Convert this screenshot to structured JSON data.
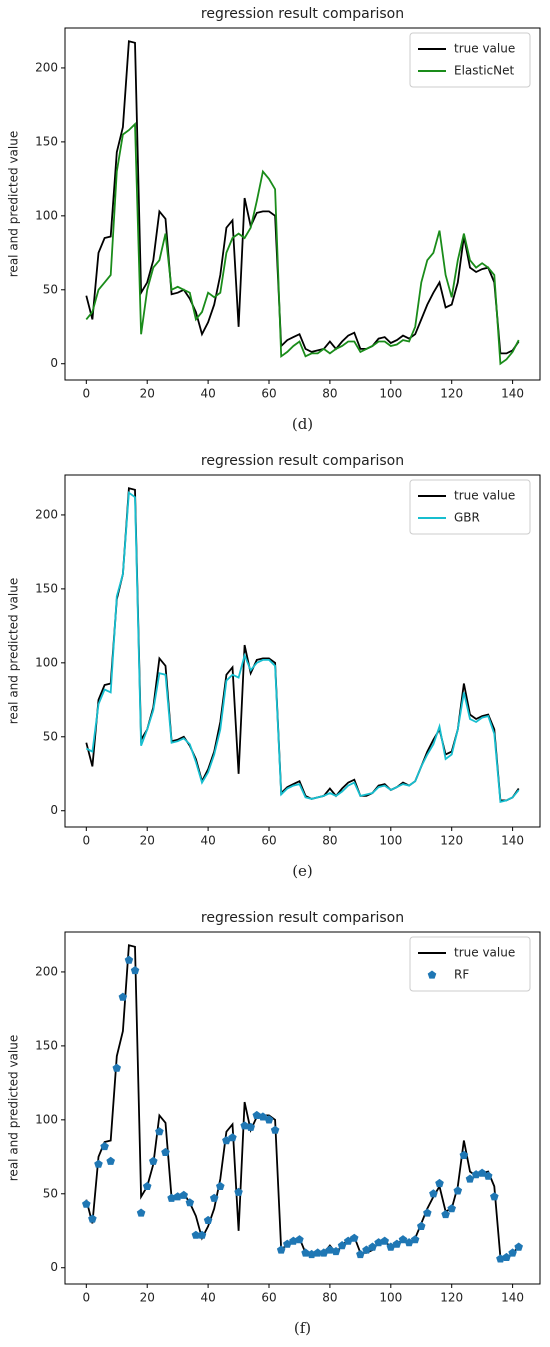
{
  "chart_data": [
    {
      "type": "line",
      "title": "regression result comparison",
      "ylabel": "real and predicted value",
      "caption": "(d)",
      "legend": "upper right",
      "x": [
        0,
        2,
        4,
        6,
        8,
        10,
        12,
        14,
        16,
        18,
        20,
        22,
        24,
        26,
        28,
        30,
        32,
        34,
        36,
        38,
        40,
        42,
        44,
        46,
        48,
        50,
        52,
        54,
        56,
        58,
        60,
        62,
        64,
        66,
        68,
        70,
        72,
        74,
        76,
        78,
        80,
        82,
        84,
        86,
        88,
        90,
        92,
        94,
        96,
        98,
        100,
        102,
        104,
        106,
        108,
        110,
        112,
        114,
        116,
        118,
        120,
        122,
        124,
        126,
        128,
        130,
        132,
        134,
        136,
        138,
        140,
        142
      ],
      "series": [
        {
          "name": "true value",
          "color": "#000000",
          "style": "line",
          "values": [
            46,
            30,
            75,
            85,
            86,
            143,
            160,
            218,
            217,
            48,
            55,
            70,
            103,
            98,
            47,
            48,
            50,
            44,
            35,
            20,
            28,
            40,
            60,
            92,
            97,
            25,
            112,
            93,
            102,
            103,
            103,
            100,
            12,
            16,
            18,
            20,
            10,
            8,
            9,
            10,
            15,
            10,
            15,
            19,
            21,
            10,
            10,
            12,
            17,
            18,
            14,
            16,
            19,
            17,
            20,
            30,
            40,
            48,
            55,
            38,
            40,
            55,
            86,
            65,
            62,
            64,
            65,
            55,
            7,
            7,
            9,
            15
          ]
        },
        {
          "name": "ElasticNet",
          "color": "#1a8c1a",
          "style": "line",
          "values": [
            30,
            35,
            50,
            55,
            60,
            130,
            155,
            158,
            162,
            20,
            50,
            65,
            70,
            88,
            50,
            52,
            50,
            48,
            30,
            35,
            48,
            45,
            48,
            75,
            85,
            88,
            85,
            92,
            110,
            130,
            125,
            118,
            5,
            8,
            12,
            15,
            5,
            7,
            7,
            10,
            7,
            10,
            12,
            15,
            15,
            8,
            10,
            12,
            15,
            15,
            12,
            13,
            16,
            15,
            25,
            55,
            70,
            75,
            90,
            60,
            45,
            70,
            88,
            70,
            65,
            68,
            65,
            60,
            0,
            3,
            8,
            16
          ]
        }
      ],
      "xlim": [
        -7,
        149
      ],
      "ylim": [
        -11,
        227
      ],
      "xticks": [
        0,
        20,
        40,
        60,
        80,
        100,
        120,
        140
      ],
      "yticks": [
        0,
        50,
        100,
        150,
        200
      ]
    },
    {
      "type": "line",
      "title": "regression result comparison",
      "ylabel": "real and predicted value",
      "caption": "(e)",
      "legend": "upper right",
      "x": [
        0,
        2,
        4,
        6,
        8,
        10,
        12,
        14,
        16,
        18,
        20,
        22,
        24,
        26,
        28,
        30,
        32,
        34,
        36,
        38,
        40,
        42,
        44,
        46,
        48,
        50,
        52,
        54,
        56,
        58,
        60,
        62,
        64,
        66,
        68,
        70,
        72,
        74,
        76,
        78,
        80,
        82,
        84,
        86,
        88,
        90,
        92,
        94,
        96,
        98,
        100,
        102,
        104,
        106,
        108,
        110,
        112,
        114,
        116,
        118,
        120,
        122,
        124,
        126,
        128,
        130,
        132,
        134,
        136,
        138,
        140,
        142
      ],
      "series": [
        {
          "name": "true value",
          "color": "#000000",
          "style": "line",
          "values": [
            46,
            30,
            75,
            85,
            86,
            143,
            160,
            218,
            217,
            48,
            55,
            70,
            103,
            98,
            47,
            48,
            50,
            44,
            35,
            20,
            28,
            40,
            60,
            92,
            97,
            25,
            112,
            93,
            102,
            103,
            103,
            100,
            12,
            16,
            18,
            20,
            10,
            8,
            9,
            10,
            15,
            10,
            15,
            19,
            21,
            10,
            10,
            12,
            17,
            18,
            14,
            16,
            19,
            17,
            20,
            30,
            40,
            48,
            55,
            38,
            40,
            55,
            86,
            65,
            62,
            64,
            65,
            55,
            7,
            7,
            9,
            15
          ]
        },
        {
          "name": "GBR",
          "color": "#17becf",
          "style": "line",
          "values": [
            42,
            40,
            72,
            82,
            80,
            145,
            160,
            215,
            212,
            44,
            55,
            68,
            93,
            92,
            46,
            47,
            49,
            45,
            33,
            19,
            26,
            38,
            55,
            88,
            92,
            90,
            105,
            95,
            100,
            102,
            102,
            98,
            11,
            15,
            17,
            18,
            9,
            8,
            9,
            10,
            12,
            10,
            13,
            17,
            19,
            10,
            11,
            12,
            16,
            17,
            14,
            16,
            18,
            17,
            20,
            30,
            38,
            45,
            57,
            35,
            38,
            55,
            80,
            62,
            60,
            63,
            64,
            52,
            6,
            7,
            9,
            14
          ]
        }
      ],
      "xlim": [
        -7,
        149
      ],
      "ylim": [
        -11,
        227
      ],
      "xticks": [
        0,
        20,
        40,
        60,
        80,
        100,
        120,
        140
      ],
      "yticks": [
        0,
        50,
        100,
        150,
        200
      ]
    },
    {
      "type": "line",
      "title": "regression result comparison",
      "ylabel": "real and predicted value",
      "caption": "(f)",
      "legend": "upper right",
      "x": [
        0,
        2,
        4,
        6,
        8,
        10,
        12,
        14,
        16,
        18,
        20,
        22,
        24,
        26,
        28,
        30,
        32,
        34,
        36,
        38,
        40,
        42,
        44,
        46,
        48,
        50,
        52,
        54,
        56,
        58,
        60,
        62,
        64,
        66,
        68,
        70,
        72,
        74,
        76,
        78,
        80,
        82,
        84,
        86,
        88,
        90,
        92,
        94,
        96,
        98,
        100,
        102,
        104,
        106,
        108,
        110,
        112,
        114,
        116,
        118,
        120,
        122,
        124,
        126,
        128,
        130,
        132,
        134,
        136,
        138,
        140,
        142
      ],
      "series": [
        {
          "name": "true value",
          "color": "#000000",
          "style": "line",
          "values": [
            46,
            30,
            75,
            85,
            86,
            143,
            160,
            218,
            217,
            48,
            55,
            70,
            103,
            98,
            47,
            48,
            50,
            44,
            35,
            20,
            28,
            40,
            60,
            92,
            97,
            25,
            112,
            93,
            102,
            103,
            103,
            100,
            12,
            16,
            18,
            20,
            10,
            8,
            9,
            10,
            15,
            10,
            15,
            19,
            21,
            10,
            10,
            12,
            17,
            18,
            14,
            16,
            19,
            17,
            20,
            30,
            40,
            48,
            55,
            38,
            40,
            55,
            86,
            65,
            62,
            64,
            65,
            55,
            7,
            7,
            9,
            15
          ]
        },
        {
          "name": "RF",
          "color": "#1f77b4",
          "style": "markers",
          "values": [
            43,
            33,
            70,
            82,
            72,
            135,
            183,
            208,
            201,
            37,
            55,
            72,
            92,
            78,
            47,
            48,
            49,
            44,
            22,
            22,
            32,
            47,
            55,
            86,
            88,
            51,
            96,
            95,
            103,
            102,
            100,
            93,
            12,
            16,
            18,
            19,
            10,
            9,
            10,
            10,
            12,
            11,
            15,
            18,
            20,
            9,
            12,
            14,
            17,
            18,
            14,
            16,
            19,
            17,
            19,
            28,
            37,
            50,
            57,
            36,
            40,
            52,
            76,
            60,
            63,
            64,
            62,
            48,
            6,
            7,
            10,
            14
          ]
        }
      ],
      "xlim": [
        -7,
        149
      ],
      "ylim": [
        -11,
        227
      ],
      "xticks": [
        0,
        20,
        40,
        60,
        80,
        100,
        120,
        140
      ],
      "yticks": [
        0,
        50,
        100,
        150,
        200
      ]
    }
  ]
}
